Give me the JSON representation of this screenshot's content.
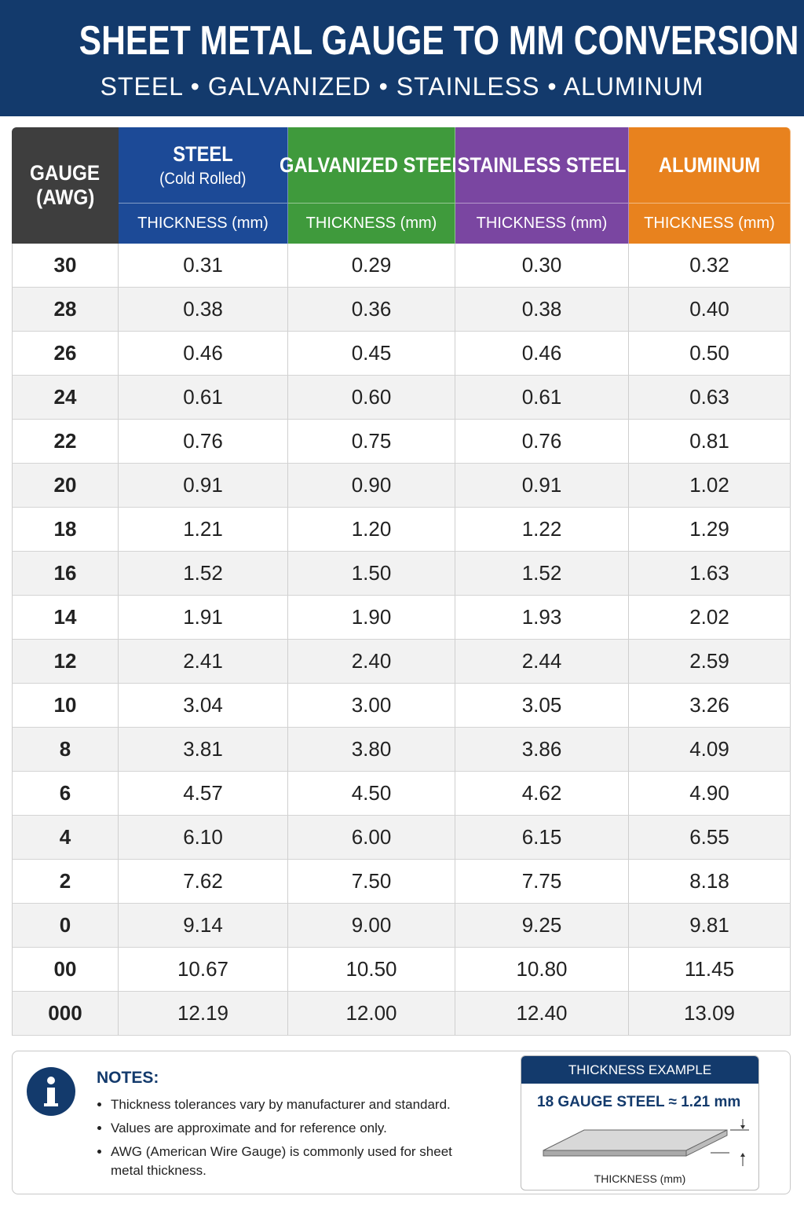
{
  "header": {
    "title": "SHEET METAL GAUGE TO MM CONVERSION",
    "subtitle": "STEEL • GALVANIZED • STAINLESS • ALUMINUM"
  },
  "table": {
    "gauge_header": [
      "GAUGE",
      "(AWG)"
    ],
    "columns": [
      {
        "name": "STEEL",
        "note": "(Cold Rolled)",
        "unit": "THICKNESS (mm)",
        "color": "#1c4a97"
      },
      {
        "name": "GALVANIZED STEEL",
        "unit": "THICKNESS (mm)",
        "color": "#3f9a3c"
      },
      {
        "name": "STAINLESS STEEL",
        "unit": "THICKNESS (mm)",
        "color": "#7a46a1"
      },
      {
        "name": "ALUMINUM",
        "unit": "THICKNESS (mm)",
        "color": "#e8821e"
      }
    ],
    "rows": [
      [
        "30",
        "0.31",
        "0.29",
        "0.30",
        "0.32"
      ],
      [
        "28",
        "0.38",
        "0.36",
        "0.38",
        "0.40"
      ],
      [
        "26",
        "0.46",
        "0.45",
        "0.46",
        "0.50"
      ],
      [
        "24",
        "0.61",
        "0.60",
        "0.61",
        "0.63"
      ],
      [
        "22",
        "0.76",
        "0.75",
        "0.76",
        "0.81"
      ],
      [
        "20",
        "0.91",
        "0.90",
        "0.91",
        "1.02"
      ],
      [
        "18",
        "1.21",
        "1.20",
        "1.22",
        "1.29"
      ],
      [
        "16",
        "1.52",
        "1.50",
        "1.52",
        "1.63"
      ],
      [
        "14",
        "1.91",
        "1.90",
        "1.93",
        "2.02"
      ],
      [
        "12",
        "2.41",
        "2.40",
        "2.44",
        "2.59"
      ],
      [
        "10",
        "3.04",
        "3.00",
        "3.05",
        "3.26"
      ],
      [
        "8",
        "3.81",
        "3.80",
        "3.86",
        "4.09"
      ],
      [
        "6",
        "4.57",
        "4.50",
        "4.62",
        "4.90"
      ],
      [
        "4",
        "6.10",
        "6.00",
        "6.15",
        "6.55"
      ],
      [
        "2",
        "7.62",
        "7.50",
        "7.75",
        "8.18"
      ],
      [
        "0",
        "9.14",
        "9.00",
        "9.25",
        "9.81"
      ],
      [
        "00",
        "10.67",
        "10.50",
        "10.80",
        "11.45"
      ],
      [
        "000",
        "12.19",
        "12.00",
        "12.40",
        "13.09"
      ]
    ]
  },
  "notes": {
    "title": "NOTES:",
    "items": [
      "Thickness tolerances vary by manufacturer and standard.",
      "Values are approximate and for reference only.",
      "AWG (American Wire Gauge) is commonly used for sheet metal thickness."
    ]
  },
  "example": {
    "title": "THICKNESS EXAMPLE",
    "text": "18 GAUGE STEEL ≈ 1.21 mm",
    "label": "THICKNESS (mm)"
  }
}
